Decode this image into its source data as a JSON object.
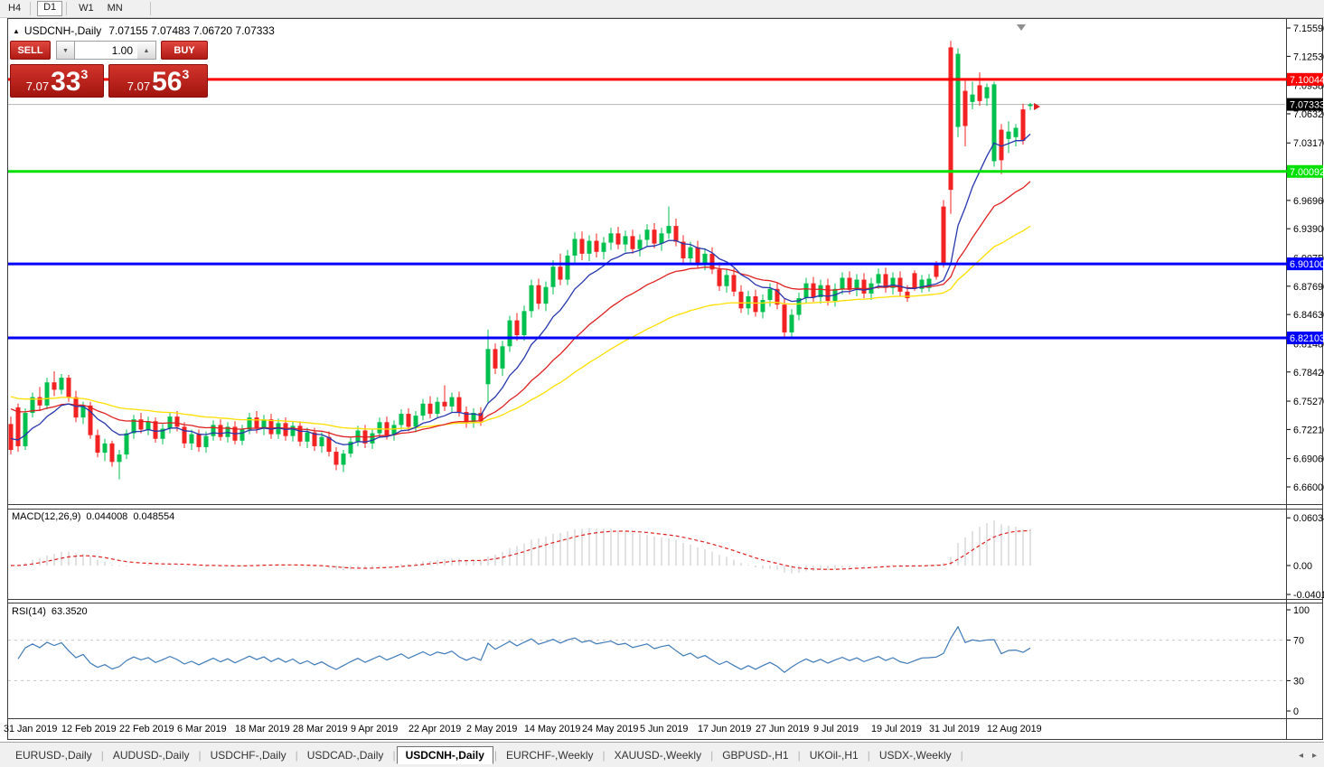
{
  "toolbar": {
    "timeframes": [
      "H4",
      "D1",
      "W1",
      "MN"
    ],
    "active": "D1"
  },
  "chart": {
    "title_symbol": "USDCNH-,Daily",
    "title_ohlc": "7.07155 7.07483 7.06720 7.07333"
  },
  "icons": {
    "panel_collapse": "▲",
    "stepper_up": "▲",
    "stepper_down": "▼",
    "tabs_left": "◂",
    "tabs_right": "▸"
  },
  "trade_panel": {
    "sell_label": "SELL",
    "buy_label": "BUY",
    "volume": "1.00",
    "sell_price_small": "7.07",
    "sell_price_big": "33",
    "sell_price_sup": "3",
    "buy_price_small": "7.07",
    "buy_price_big": "56",
    "buy_price_sup": "3"
  },
  "price_axis": {
    "ticks": [
      {
        "p": 7.1559,
        "label": "7.15590"
      },
      {
        "p": 7.1253,
        "label": "7.12530"
      },
      {
        "p": 7.0938,
        "label": "7.09380"
      },
      {
        "p": 7.0632,
        "label": "7.06320"
      },
      {
        "p": 7.0317,
        "label": "7.03170"
      },
      {
        "p": 6.9696,
        "label": "6.96960"
      },
      {
        "p": 6.939,
        "label": "6.93900"
      },
      {
        "p": 6.9075,
        "label": "6.90750"
      },
      {
        "p": 6.8769,
        "label": "6.87690"
      },
      {
        "p": 6.8463,
        "label": "6.84630"
      },
      {
        "p": 6.8148,
        "label": "6.81480"
      },
      {
        "p": 6.7842,
        "label": "6.78420"
      },
      {
        "p": 6.7527,
        "label": "6.75270"
      },
      {
        "p": 6.7221,
        "label": "6.72210"
      },
      {
        "p": 6.6906,
        "label": "6.69060"
      },
      {
        "p": 6.66,
        "label": "6.66000"
      }
    ]
  },
  "hlines": [
    {
      "price": 7.10044,
      "label": "7.10044",
      "color": "#FF0000",
      "width": 3
    },
    {
      "price": 7.00092,
      "label": "7.00092",
      "color": "#00E000",
      "width": 3
    },
    {
      "price": 6.901,
      "label": "6.90100",
      "color": "#0000FF",
      "width": 3
    },
    {
      "price": 6.82103,
      "label": "6.82103",
      "color": "#0000FF",
      "width": 3
    }
  ],
  "current_price": {
    "value": 7.07333,
    "label": "7.07333"
  },
  "macd": {
    "name": "MACD(12,26,9)",
    "value1": "0.044008",
    "value2": "0.048554",
    "ticks": [
      {
        "v": 0.060343,
        "label": "0.060343"
      },
      {
        "v": 0.0,
        "label": "0.00"
      },
      {
        "v": -0.040136,
        "label": "-0.040136"
      }
    ]
  },
  "rsi": {
    "name": "RSI(14)",
    "value": "63.3520",
    "levels": [
      70,
      30
    ],
    "ticks": [
      {
        "v": 100,
        "label": "100"
      },
      {
        "v": 70,
        "label": "70"
      },
      {
        "v": 30,
        "label": "30"
      },
      {
        "v": 0,
        "label": "0"
      }
    ]
  },
  "date_axis": {
    "labels": [
      "31 Jan 2019",
      "12 Feb 2019",
      "22 Feb 2019",
      "6 Mar 2019",
      "18 Mar 2019",
      "28 Mar 2019",
      "9 Apr 2019",
      "22 Apr 2019",
      "2 May 2019",
      "14 May 2019",
      "24 May 2019",
      "5 Jun 2019",
      "17 Jun 2019",
      "27 Jun 2019",
      "9 Jul 2019",
      "19 Jul 2019",
      "31 Jul 2019",
      "12 Aug 2019"
    ]
  },
  "tabs": {
    "items": [
      "EURUSD-,Daily",
      "AUDUSD-,Daily",
      "USDCHF-,Daily",
      "USDCAD-,Daily",
      "USDCNH-,Daily",
      "EURCHF-,Weekly",
      "XAUUSD-,Weekly",
      "GBPUSD-,H1",
      "UKOil-,H1",
      "USDX-,Weekly"
    ],
    "active": "USDCNH-,Daily"
  },
  "colors": {
    "bull": "#00C050",
    "bear": "#F22222",
    "ma_fast": "#2636AE",
    "ma_mid": "#E02020",
    "ma_slow": "#FFDF00",
    "macd_hist": "#C4C4C4",
    "macd_signal": "#E02020",
    "rsi_line": "#3F7AB8",
    "rsi_level": "#C6C6C6",
    "current_line": "#B4B4B4",
    "frame": "#3C3C3C",
    "badge_text": "#FFFFFF",
    "current_badge_bg": "#000000"
  },
  "chart_data": {
    "type": "candlestick",
    "symbol": "USDCNH-",
    "timeframe": "Daily",
    "last_bar_ohlc": {
      "open": 7.07155,
      "high": 7.07483,
      "low": 7.0672,
      "close": 7.07333
    },
    "price_range": [
      6.66,
      7.1559
    ],
    "horizontal_levels": [
      7.10044,
      7.00092,
      6.901,
      6.82103
    ],
    "indicators": [
      {
        "name": "MACD(12,26,9)",
        "values": [
          0.044008,
          0.048554
        ],
        "scale": [
          -0.040136,
          0.060343
        ]
      },
      {
        "name": "RSI(14)",
        "value": 63.352,
        "scale": [
          0,
          100
        ],
        "levels": [
          70,
          30
        ]
      }
    ],
    "x_axis_dates": [
      "31 Jan 2019",
      "12 Feb 2019",
      "22 Feb 2019",
      "6 Mar 2019",
      "18 Mar 2019",
      "28 Mar 2019",
      "9 Apr 2019",
      "22 Apr 2019",
      "2 May 2019",
      "14 May 2019",
      "24 May 2019",
      "5 Jun 2019",
      "17 Jun 2019",
      "27 Jun 2019",
      "9 Jul 2019",
      "19 Jul 2019",
      "31 Jul 2019",
      "12 Aug 2019"
    ],
    "candles": [
      [
        6.728,
        6.736,
        6.695,
        6.7
      ],
      [
        6.746,
        6.75,
        6.698,
        6.704
      ],
      [
        6.704,
        6.745,
        6.7,
        6.74
      ],
      [
        6.74,
        6.762,
        6.735,
        6.757
      ],
      [
        6.757,
        6.768,
        6.742,
        6.748
      ],
      [
        6.748,
        6.778,
        6.744,
        6.773
      ],
      [
        6.773,
        6.785,
        6.758,
        6.765
      ],
      [
        6.765,
        6.782,
        6.76,
        6.778
      ],
      [
        6.778,
        6.781,
        6.752,
        6.757
      ],
      [
        6.757,
        6.764,
        6.73,
        6.735
      ],
      [
        6.735,
        6.752,
        6.728,
        6.748
      ],
      [
        6.748,
        6.752,
        6.712,
        6.716
      ],
      [
        6.716,
        6.722,
        6.692,
        6.697
      ],
      [
        6.697,
        6.712,
        6.688,
        6.707
      ],
      [
        6.707,
        6.71,
        6.682,
        6.687
      ],
      [
        6.687,
        6.7,
        6.668,
        6.695
      ],
      [
        6.695,
        6.722,
        6.69,
        6.718
      ],
      [
        6.718,
        6.738,
        6.712,
        6.733
      ],
      [
        6.733,
        6.74,
        6.718,
        6.722
      ],
      [
        6.722,
        6.736,
        6.716,
        6.731
      ],
      [
        6.731,
        6.735,
        6.708,
        6.712
      ],
      [
        6.712,
        6.728,
        6.706,
        6.723
      ],
      [
        6.723,
        6.74,
        6.718,
        6.736
      ],
      [
        6.736,
        6.742,
        6.72,
        6.725
      ],
      [
        6.725,
        6.73,
        6.702,
        6.707
      ],
      [
        6.707,
        6.722,
        6.7,
        6.717
      ],
      [
        6.717,
        6.722,
        6.698,
        6.703
      ],
      [
        6.703,
        6.72,
        6.697,
        6.715
      ],
      [
        6.715,
        6.732,
        6.71,
        6.727
      ],
      [
        6.727,
        6.733,
        6.71,
        6.714
      ],
      [
        6.714,
        6.73,
        6.708,
        6.725
      ],
      [
        6.725,
        6.731,
        6.706,
        6.71
      ],
      [
        6.71,
        6.727,
        6.705,
        6.722
      ],
      [
        6.722,
        6.74,
        6.717,
        6.735
      ],
      [
        6.735,
        6.742,
        6.718,
        6.723
      ],
      [
        6.723,
        6.738,
        6.716,
        6.733
      ],
      [
        6.733,
        6.739,
        6.712,
        6.717
      ],
      [
        6.717,
        6.734,
        6.712,
        6.729
      ],
      [
        6.729,
        6.735,
        6.71,
        6.715
      ],
      [
        6.715,
        6.731,
        6.709,
        6.726
      ],
      [
        6.726,
        6.731,
        6.704,
        6.709
      ],
      [
        6.709,
        6.724,
        6.702,
        6.719
      ],
      [
        6.719,
        6.724,
        6.699,
        6.704
      ],
      [
        6.704,
        6.719,
        6.697,
        6.714
      ],
      [
        6.714,
        6.72,
        6.693,
        6.698
      ],
      [
        6.698,
        6.703,
        6.678,
        6.684
      ],
      [
        6.684,
        6.7,
        6.676,
        6.696
      ],
      [
        6.696,
        6.714,
        6.692,
        6.709
      ],
      [
        6.709,
        6.726,
        6.704,
        6.721
      ],
      [
        6.721,
        6.727,
        6.702,
        6.707
      ],
      [
        6.707,
        6.723,
        6.701,
        6.718
      ],
      [
        6.718,
        6.735,
        6.713,
        6.73
      ],
      [
        6.73,
        6.736,
        6.711,
        6.716
      ],
      [
        6.716,
        6.732,
        6.71,
        6.727
      ],
      [
        6.727,
        6.744,
        6.722,
        6.739
      ],
      [
        6.739,
        6.745,
        6.72,
        6.725
      ],
      [
        6.725,
        6.742,
        6.719,
        6.737
      ],
      [
        6.737,
        6.755,
        6.732,
        6.75
      ],
      [
        6.75,
        6.758,
        6.734,
        6.739
      ],
      [
        6.739,
        6.757,
        6.735,
        6.752
      ],
      [
        6.752,
        6.77,
        6.742,
        6.747
      ],
      [
        6.747,
        6.762,
        6.74,
        6.757
      ],
      [
        6.757,
        6.763,
        6.736,
        6.741
      ],
      [
        6.741,
        6.747,
        6.724,
        6.73
      ],
      [
        6.73,
        6.745,
        6.724,
        6.74
      ],
      [
        6.74,
        6.746,
        6.726,
        6.731
      ],
      [
        6.771,
        6.83,
        6.751,
        6.809
      ],
      [
        6.809,
        6.815,
        6.782,
        6.788
      ],
      [
        6.788,
        6.818,
        6.78,
        6.812
      ],
      [
        6.812,
        6.845,
        6.806,
        6.84
      ],
      [
        6.84,
        6.848,
        6.818,
        6.824
      ],
      [
        6.824,
        6.856,
        6.818,
        6.85
      ],
      [
        6.85,
        6.884,
        6.843,
        6.878
      ],
      [
        6.878,
        6.885,
        6.852,
        6.858
      ],
      [
        6.858,
        6.882,
        6.85,
        6.876
      ],
      [
        6.876,
        6.905,
        6.868,
        6.898
      ],
      [
        6.898,
        6.912,
        6.878,
        6.884
      ],
      [
        6.884,
        6.916,
        6.878,
        6.91
      ],
      [
        6.91,
        6.935,
        6.902,
        6.928
      ],
      [
        6.928,
        6.936,
        6.905,
        6.912
      ],
      [
        6.912,
        6.932,
        6.904,
        6.926
      ],
      [
        6.926,
        6.934,
        6.908,
        6.914
      ],
      [
        6.914,
        6.93,
        6.906,
        6.924
      ],
      [
        6.924,
        6.94,
        6.916,
        6.934
      ],
      [
        6.934,
        6.941,
        6.917,
        6.922
      ],
      [
        6.922,
        6.937,
        6.914,
        6.931
      ],
      [
        6.931,
        6.938,
        6.912,
        6.917
      ],
      [
        6.917,
        6.933,
        6.909,
        6.927
      ],
      [
        6.927,
        6.944,
        6.92,
        6.938
      ],
      [
        6.938,
        6.945,
        6.918,
        6.923
      ],
      [
        6.923,
        6.94,
        6.915,
        6.934
      ],
      [
        6.934,
        6.963,
        6.928,
        6.942
      ],
      [
        6.942,
        6.95,
        6.92,
        6.925
      ],
      [
        6.925,
        6.932,
        6.902,
        6.907
      ],
      [
        6.907,
        6.925,
        6.9,
        6.919
      ],
      [
        6.919,
        6.926,
        6.896,
        6.901
      ],
      [
        6.901,
        6.918,
        6.894,
        6.912
      ],
      [
        6.912,
        6.919,
        6.89,
        6.895
      ],
      [
        6.895,
        6.903,
        6.872,
        6.877
      ],
      [
        6.877,
        6.895,
        6.87,
        6.889
      ],
      [
        6.889,
        6.896,
        6.866,
        6.871
      ],
      [
        6.871,
        6.878,
        6.848,
        6.853
      ],
      [
        6.853,
        6.872,
        6.846,
        6.866
      ],
      [
        6.866,
        6.873,
        6.844,
        6.849
      ],
      [
        6.849,
        6.868,
        6.842,
        6.862
      ],
      [
        6.862,
        6.88,
        6.855,
        6.874
      ],
      [
        6.874,
        6.881,
        6.852,
        6.857
      ],
      [
        6.857,
        6.864,
        6.82,
        6.827
      ],
      [
        6.827,
        6.852,
        6.821,
        6.846
      ],
      [
        6.846,
        6.87,
        6.84,
        6.864
      ],
      [
        6.864,
        6.886,
        6.858,
        6.88
      ],
      [
        6.88,
        6.887,
        6.86,
        6.865
      ],
      [
        6.865,
        6.884,
        6.858,
        6.878
      ],
      [
        6.878,
        6.885,
        6.856,
        6.861
      ],
      [
        6.861,
        6.88,
        6.855,
        6.874
      ],
      [
        6.874,
        6.892,
        6.868,
        6.886
      ],
      [
        6.886,
        6.893,
        6.868,
        6.873
      ],
      [
        6.873,
        6.89,
        6.866,
        6.884
      ],
      [
        6.884,
        6.891,
        6.864,
        6.869
      ],
      [
        6.869,
        6.886,
        6.862,
        6.88
      ],
      [
        6.88,
        6.896,
        6.874,
        6.89
      ],
      [
        6.89,
        6.897,
        6.87,
        6.875
      ],
      [
        6.875,
        6.892,
        6.868,
        6.886
      ],
      [
        6.886,
        6.893,
        6.866,
        6.871
      ],
      [
        6.871,
        6.878,
        6.86,
        6.864
      ],
      [
        6.891,
        6.894,
        6.872,
        6.874
      ],
      [
        6.874,
        6.889,
        6.87,
        6.884
      ],
      [
        6.875,
        6.89,
        6.871,
        6.885
      ],
      [
        6.9,
        6.904,
        6.884,
        6.887
      ],
      [
        6.963,
        6.97,
        6.897,
        6.9
      ],
      [
        7.135,
        7.142,
        6.955,
        6.981
      ],
      [
        7.049,
        7.134,
        7.038,
        7.128
      ],
      [
        7.088,
        7.101,
        7.028,
        7.05
      ],
      [
        7.076,
        7.098,
        7.068,
        7.084
      ],
      [
        7.094,
        7.108,
        7.072,
        7.077
      ],
      [
        7.08,
        7.096,
        7.072,
        7.092
      ],
      [
        7.012,
        7.098,
        7.006,
        7.095
      ],
      [
        7.046,
        7.052,
        6.998,
        7.013
      ],
      [
        7.036,
        7.055,
        7.021,
        7.044
      ],
      [
        7.038,
        7.052,
        7.028,
        7.048
      ],
      [
        7.068,
        7.074,
        7.03,
        7.034
      ],
      [
        7.07155,
        7.07483,
        7.0672,
        7.07333
      ]
    ]
  }
}
